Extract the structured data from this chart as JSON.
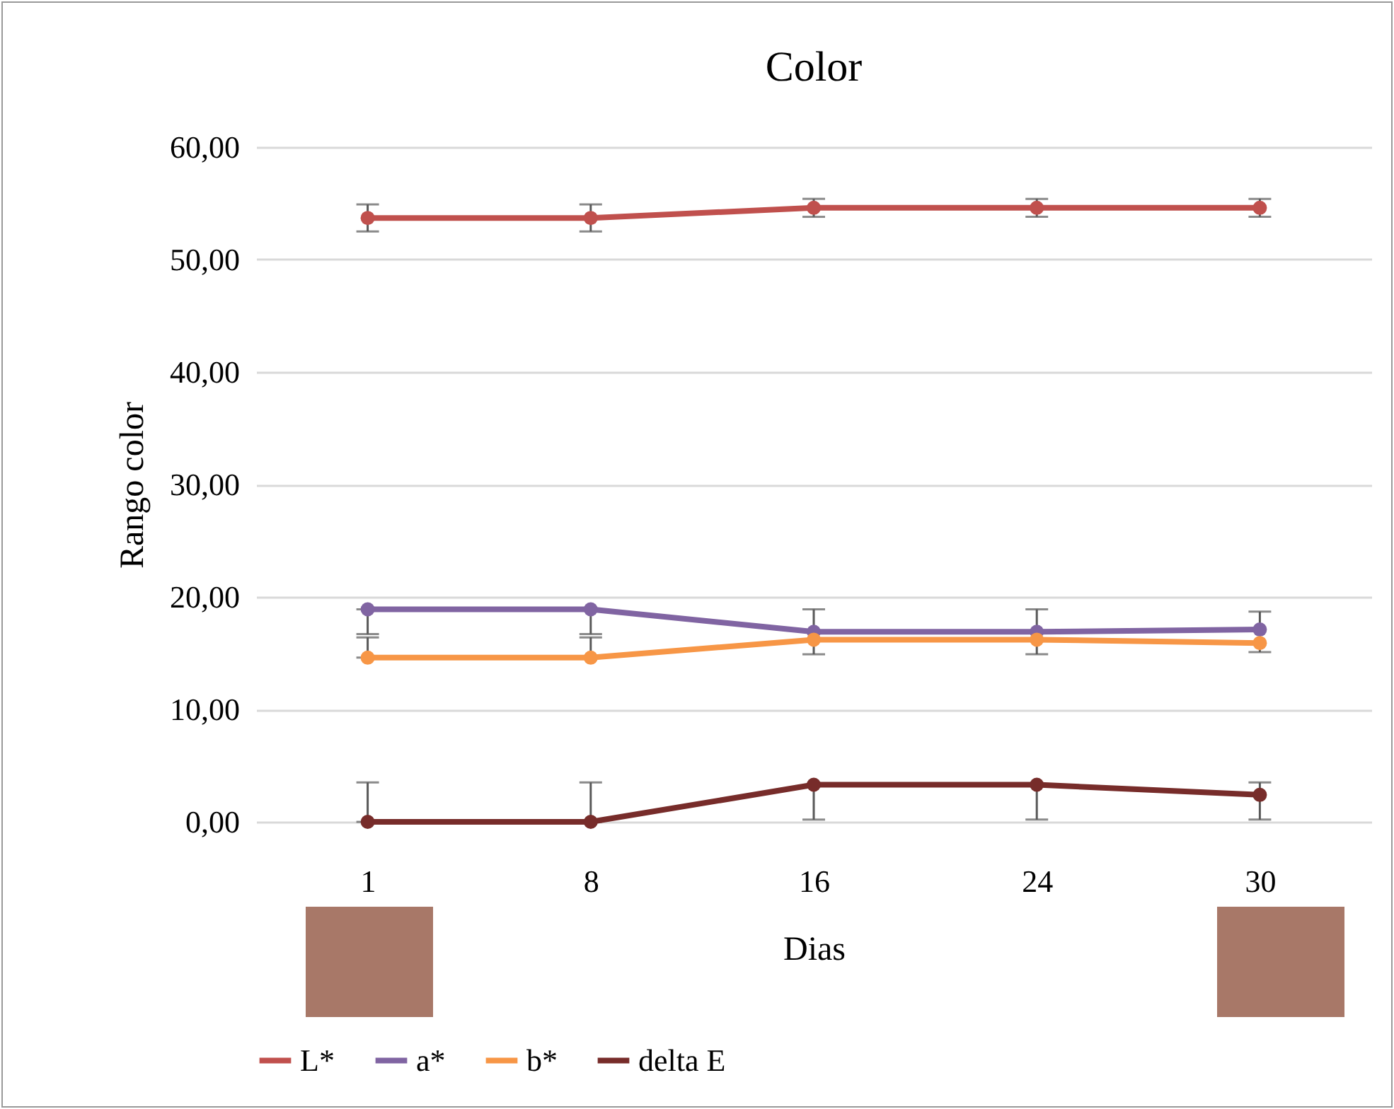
{
  "chart_data": {
    "type": "line",
    "title": "Color",
    "xlabel": "Dias",
    "ylabel": "Rango color",
    "categories": [
      "1",
      "8",
      "16",
      "24",
      "30"
    ],
    "ylim": [
      0,
      60
    ],
    "yticks": [
      {
        "value": 0,
        "label": "0,00"
      },
      {
        "value": 10,
        "label": "10,00"
      },
      {
        "value": 20,
        "label": "20,00"
      },
      {
        "value": 30,
        "label": "30,00"
      },
      {
        "value": 40,
        "label": "40,00"
      },
      {
        "value": 50,
        "label": "50,00"
      },
      {
        "value": 60,
        "label": "60,00"
      }
    ],
    "grid": "y",
    "legend": "bottom",
    "marker": "circle",
    "line_style": "solid",
    "series": [
      {
        "name": "L*",
        "color": "#c0504d",
        "values": [
          53.7,
          53.7,
          54.6,
          54.6,
          54.6
        ],
        "errors": [
          1.2,
          1.2,
          0.8,
          0.8,
          0.8
        ]
      },
      {
        "name": "a*",
        "color": "#8064a2",
        "values": [
          18.9,
          18.9,
          16.9,
          16.9,
          17.1
        ],
        "errors": [
          [
            16.7,
            18.9
          ],
          [
            16.7,
            18.9
          ],
          2,
          2,
          [
            15.1,
            18.7
          ]
        ]
      },
      {
        "name": "b*",
        "color": "#f79646",
        "values": [
          14.6,
          14.6,
          16.2,
          16.2,
          15.9
        ],
        "errors": [
          [
            14.6,
            16.4
          ],
          [
            14.6,
            16.4
          ],
          null,
          null,
          null
        ]
      },
      {
        "name": "delta E",
        "color": "#772c2a",
        "values": [
          0.0,
          0.0,
          3.3,
          3.3,
          2.4
        ],
        "errors": [
          [
            0,
            3.5
          ],
          [
            0,
            3.5
          ],
          [
            0.2,
            3.3
          ],
          [
            0.2,
            3.3
          ],
          [
            0.2,
            3.5
          ]
        ]
      }
    ]
  }
}
